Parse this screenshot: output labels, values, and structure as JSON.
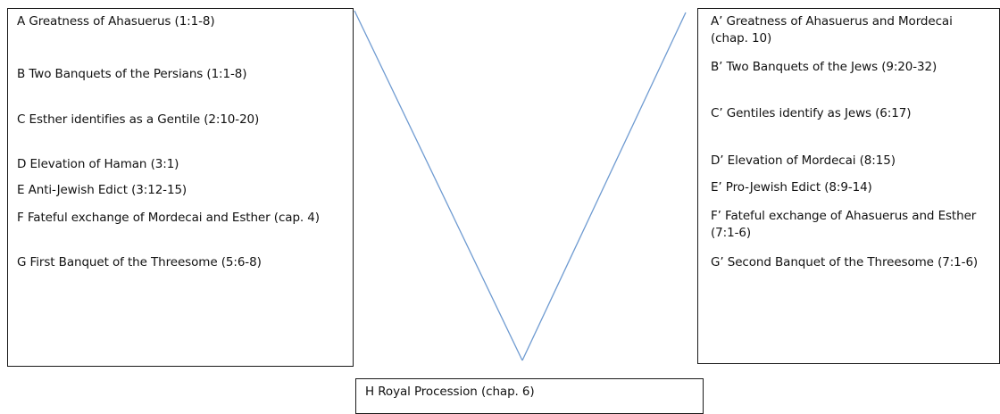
{
  "diagram": {
    "line_color": "#6f9bd1",
    "left_items": [
      "A Greatness of Ahasuerus (1:1-8)",
      "B Two Banquets of the Persians (1:1-8)",
      "C Esther identifies as a Gentile (2:10-20)",
      "D Elevation of Haman (3:1)",
      "E Anti-Jewish Edict (3:12-15)",
      "F Fateful exchange of Mordecai and Esther (cap. 4)",
      "G First Banquet of the Threesome (5:6-8)"
    ],
    "right_items": [
      "A’ Greatness of Ahasuerus and Mordecai (chap. 10)",
      "B’ Two Banquets of the Jews (9:20-32)",
      "C’ Gentiles identify as Jews (6:17)",
      "D’ Elevation of Mordecai (8:15)",
      "E’ Pro-Jewish Edict (8:9-14)",
      "F’ Fateful exchange of Ahasuerus and Esther (7:1-6)",
      "G’ Second Banquet of the Threesome (7:1-6)"
    ],
    "center_item": "H Royal Procession (chap. 6)"
  }
}
